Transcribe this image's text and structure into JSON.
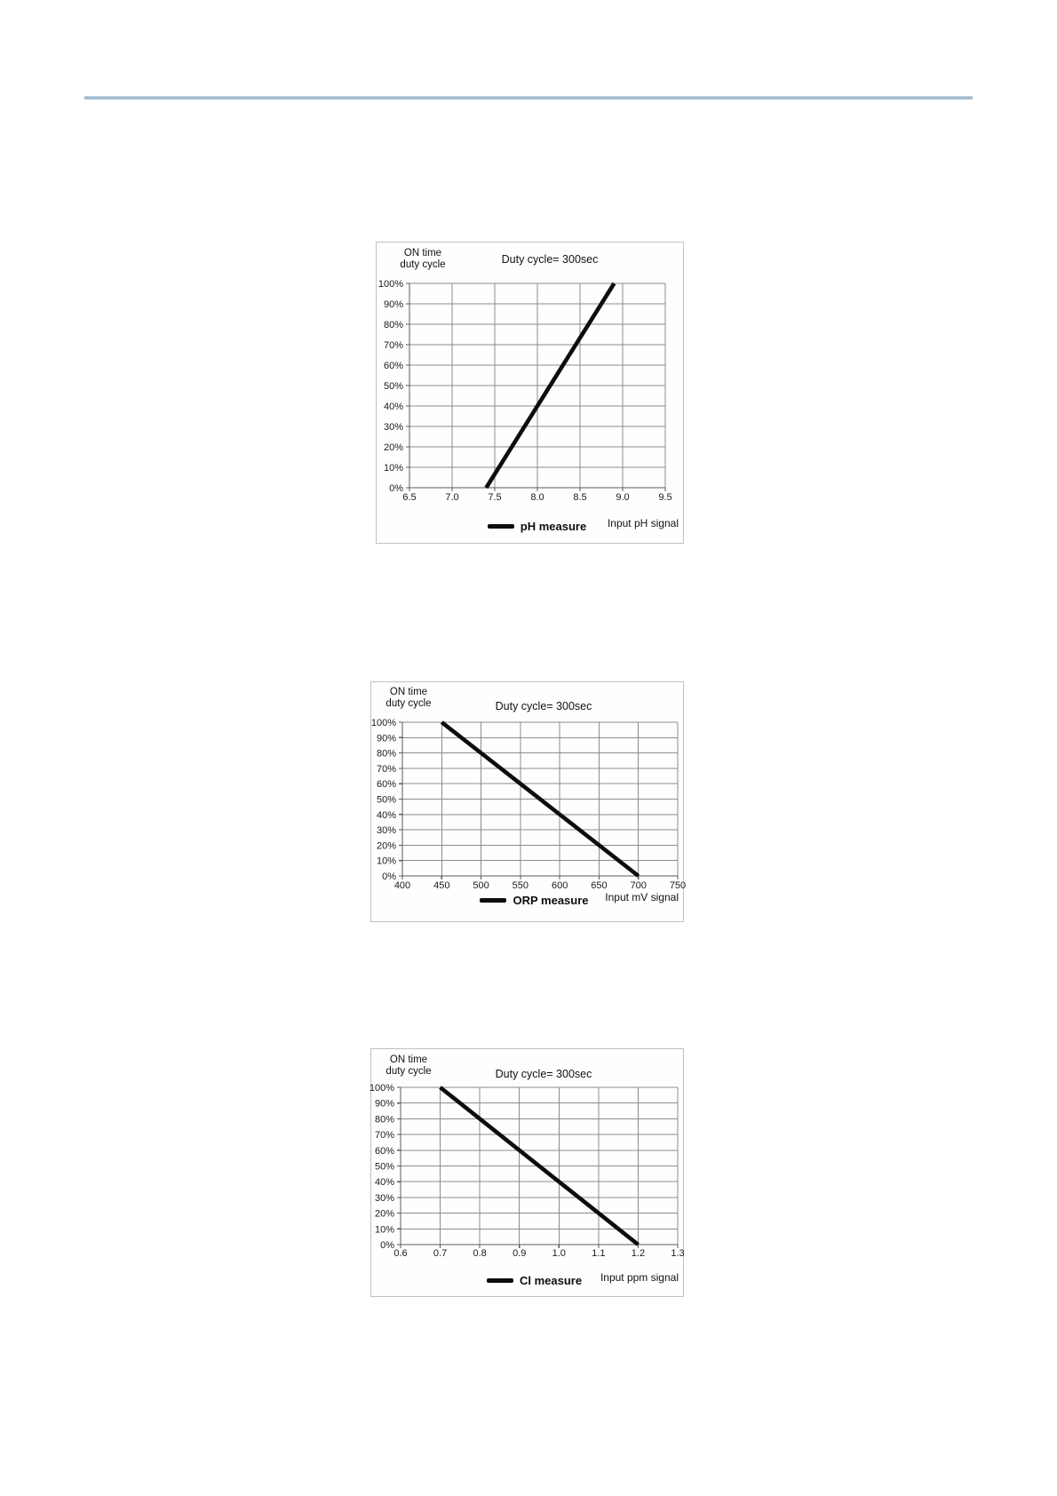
{
  "page": {
    "divider_color": "#a3bccf"
  },
  "chart_data": [
    {
      "type": "line",
      "title": "Duty cycle= 300sec",
      "ylabel_line1": "ON time",
      "ylabel_line2": "duty cycle",
      "xlabel": "Input pH signal",
      "legend": "pH measure",
      "x_ticks": [
        6.5,
        7.0,
        7.5,
        8.0,
        8.5,
        9.0,
        9.5
      ],
      "x_tick_labels": [
        "6.5",
        "7.0",
        "7.5",
        "8.0",
        "8.5",
        "9.0",
        "9.5"
      ],
      "xlim": [
        6.5,
        9.5
      ],
      "y_ticks_percent": [
        0,
        10,
        20,
        30,
        40,
        50,
        60,
        70,
        80,
        90,
        100
      ],
      "y_tick_labels": [
        "0%",
        "10%",
        "20%",
        "30%",
        "40%",
        "50%",
        "60%",
        "70%",
        "80%",
        "90%",
        "100%"
      ],
      "ylim": [
        0,
        100
      ],
      "grid": true,
      "legend_position": "bottom",
      "line_color": "#0d0d0d",
      "series": [
        {
          "name": "pH measure",
          "points": [
            [
              7.4,
              0
            ],
            [
              8.9,
              100
            ]
          ]
        }
      ]
    },
    {
      "type": "line",
      "title": "Duty cycle= 300sec",
      "ylabel_line1": "ON time",
      "ylabel_line2": "duty cycle",
      "xlabel": "Input mV signal",
      "legend": "ORP measure",
      "x_ticks": [
        400,
        450,
        500,
        550,
        600,
        650,
        700,
        750
      ],
      "x_tick_labels": [
        "400",
        "450",
        "500",
        "550",
        "600",
        "650",
        "700",
        "750"
      ],
      "xlim": [
        400,
        750
      ],
      "y_ticks_percent": [
        0,
        10,
        20,
        30,
        40,
        50,
        60,
        70,
        80,
        90,
        100
      ],
      "y_tick_labels": [
        "0%",
        "10%",
        "20%",
        "30%",
        "40%",
        "50%",
        "60%",
        "70%",
        "80%",
        "90%",
        "100%"
      ],
      "ylim": [
        0,
        100
      ],
      "grid": true,
      "legend_position": "bottom",
      "line_color": "#0d0d0d",
      "series": [
        {
          "name": "ORP measure",
          "points": [
            [
              450,
              100
            ],
            [
              700,
              0
            ]
          ]
        }
      ]
    },
    {
      "type": "line",
      "title": "Duty cycle= 300sec",
      "ylabel_line1": "ON time",
      "ylabel_line2": "duty cycle",
      "xlabel": "Input ppm signal",
      "legend": "Cl measure",
      "x_ticks": [
        0.6,
        0.7,
        0.8,
        0.9,
        1.0,
        1.1,
        1.2,
        1.3
      ],
      "x_tick_labels": [
        "0.6",
        "0.7",
        "0.8",
        "0.9",
        "1.0",
        "1.1",
        "1.2",
        "1.3"
      ],
      "xlim": [
        0.6,
        1.3
      ],
      "y_ticks_percent": [
        0,
        10,
        20,
        30,
        40,
        50,
        60,
        70,
        80,
        90,
        100
      ],
      "y_tick_labels": [
        "0%",
        "10%",
        "20%",
        "30%",
        "40%",
        "50%",
        "60%",
        "70%",
        "80%",
        "90%",
        "100%"
      ],
      "ylim": [
        0,
        100
      ],
      "grid": true,
      "legend_position": "bottom",
      "line_color": "#0d0d0d",
      "series": [
        {
          "name": "Cl measure",
          "points": [
            [
              0.7,
              100
            ],
            [
              1.2,
              0
            ]
          ]
        }
      ]
    }
  ]
}
